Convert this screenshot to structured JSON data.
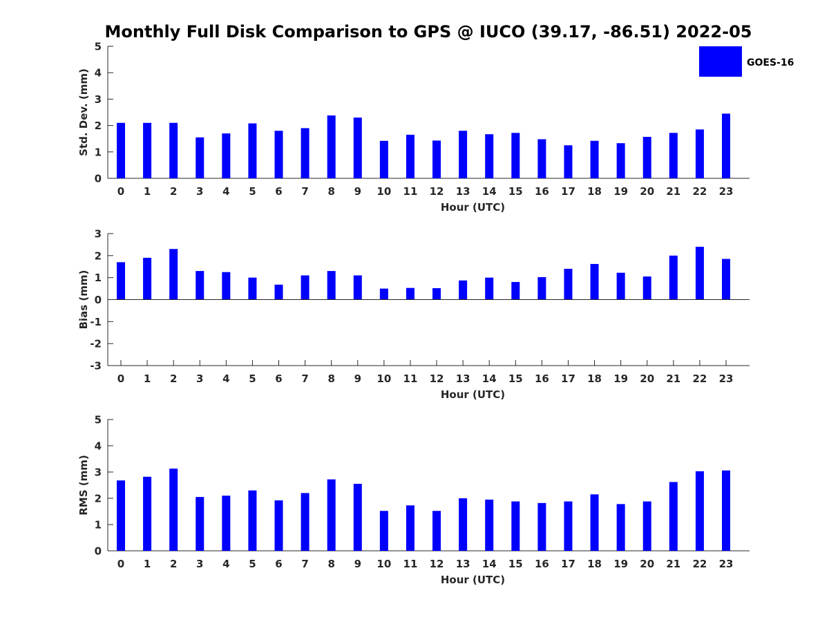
{
  "title": "Monthly Full Disk Comparison to GPS @ IUCO (39.17, -86.51) 2022-05",
  "legend": {
    "label": "GOES-16",
    "color": "#0000ff"
  },
  "chart_data": [
    {
      "type": "bar",
      "ylabel": "Std. Dev. (mm)",
      "xlabel": "Hour (UTC)",
      "ylim": [
        0,
        5
      ],
      "yticks": [
        0,
        1,
        2,
        3,
        4,
        5
      ],
      "categories": [
        "0",
        "1",
        "2",
        "3",
        "4",
        "5",
        "6",
        "7",
        "8",
        "9",
        "10",
        "11",
        "12",
        "13",
        "14",
        "15",
        "16",
        "17",
        "18",
        "19",
        "20",
        "21",
        "22",
        "23"
      ],
      "series": [
        {
          "name": "GOES-16",
          "values": [
            2.1,
            2.1,
            2.1,
            1.55,
            1.7,
            2.08,
            1.8,
            1.9,
            2.38,
            2.3,
            1.42,
            1.65,
            1.43,
            1.8,
            1.67,
            1.72,
            1.48,
            1.25,
            1.42,
            1.33,
            1.57,
            1.72,
            1.85,
            2.45
          ]
        }
      ]
    },
    {
      "type": "bar",
      "ylabel": "Bias (mm)",
      "xlabel": "Hour (UTC)",
      "ylim": [
        -3,
        3
      ],
      "yticks": [
        -3,
        -2,
        -1,
        0,
        1,
        2,
        3
      ],
      "zero_line": true,
      "categories": [
        "0",
        "1",
        "2",
        "3",
        "4",
        "5",
        "6",
        "7",
        "8",
        "9",
        "10",
        "11",
        "12",
        "13",
        "14",
        "15",
        "16",
        "17",
        "18",
        "19",
        "20",
        "21",
        "22",
        "23"
      ],
      "series": [
        {
          "name": "GOES-16",
          "values": [
            1.7,
            1.9,
            2.3,
            1.3,
            1.25,
            1.0,
            0.68,
            1.1,
            1.3,
            1.1,
            0.5,
            0.53,
            0.52,
            0.87,
            1.0,
            0.8,
            1.02,
            1.4,
            1.62,
            1.22,
            1.05,
            2.0,
            2.4,
            1.85
          ]
        }
      ]
    },
    {
      "type": "bar",
      "ylabel": "RMS (mm)",
      "xlabel": "Hour (UTC)",
      "ylim": [
        0,
        5
      ],
      "yticks": [
        0,
        1,
        2,
        3,
        4,
        5
      ],
      "categories": [
        "0",
        "1",
        "2",
        "3",
        "4",
        "5",
        "6",
        "7",
        "8",
        "9",
        "10",
        "11",
        "12",
        "13",
        "14",
        "15",
        "16",
        "17",
        "18",
        "19",
        "20",
        "21",
        "22",
        "23"
      ],
      "series": [
        {
          "name": "GOES-16",
          "values": [
            2.68,
            2.82,
            3.13,
            2.05,
            2.1,
            2.3,
            1.92,
            2.2,
            2.72,
            2.55,
            1.52,
            1.73,
            1.52,
            2.0,
            1.95,
            1.88,
            1.82,
            1.88,
            2.15,
            1.78,
            1.88,
            2.62,
            3.03,
            3.06
          ]
        }
      ]
    }
  ]
}
